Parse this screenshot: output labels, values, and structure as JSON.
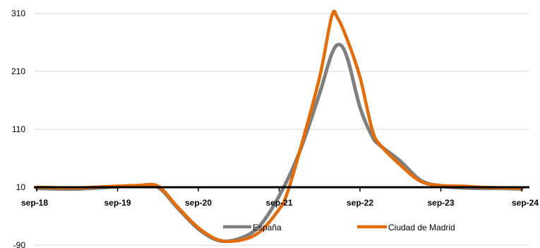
{
  "chart_data": {
    "type": "line",
    "title": "",
    "xlabel": "",
    "ylabel": "",
    "x_tick_labels": [
      "sep-18",
      "sep-19",
      "sep-20",
      "sep-21",
      "sep-22",
      "sep-23",
      "sep-24"
    ],
    "y_tick_labels": [
      "310",
      "210",
      "110",
      "10",
      "-90"
    ],
    "y_ticks": [
      310,
      210,
      110,
      10,
      -90
    ],
    "ylim": [
      -90,
      310
    ],
    "grid": true,
    "legend_position": "bottom",
    "series": [
      {
        "name": "España",
        "color": "#7f7f7f",
        "x": [
          0,
          0.5,
          1,
          1.25,
          1.5,
          1.75,
          2,
          2.25,
          2.5,
          2.75,
          3,
          3.25,
          3.5,
          3.65,
          3.75,
          3.85,
          4,
          4.15,
          4.25,
          4.5,
          4.75,
          5,
          5.25,
          5.5,
          5.75,
          6
        ],
        "values": [
          8,
          7,
          11,
          12,
          10,
          -27,
          -62,
          -82,
          -79,
          -58,
          -5,
          70,
          172,
          240,
          256,
          230,
          148,
          98,
          82,
          55,
          22,
          12,
          9,
          8,
          8,
          7
        ]
      },
      {
        "name": "Ciudad de Madrid",
        "color": "#e36c0a",
        "x": [
          0,
          0.5,
          1,
          1.25,
          1.5,
          1.75,
          2,
          2.25,
          2.5,
          2.75,
          3,
          3.1,
          3.25,
          3.5,
          3.65,
          3.72,
          3.85,
          4,
          4.15,
          4.25,
          4.5,
          4.75,
          5,
          5.25,
          5.5,
          5.75,
          6
        ],
        "values": [
          10,
          9,
          12,
          13,
          12,
          -25,
          -60,
          -81,
          -82,
          -68,
          -28,
          0,
          70,
          200,
          305,
          303,
          262,
          200,
          110,
          83,
          48,
          20,
          13,
          12,
          10,
          9,
          8
        ]
      }
    ]
  }
}
